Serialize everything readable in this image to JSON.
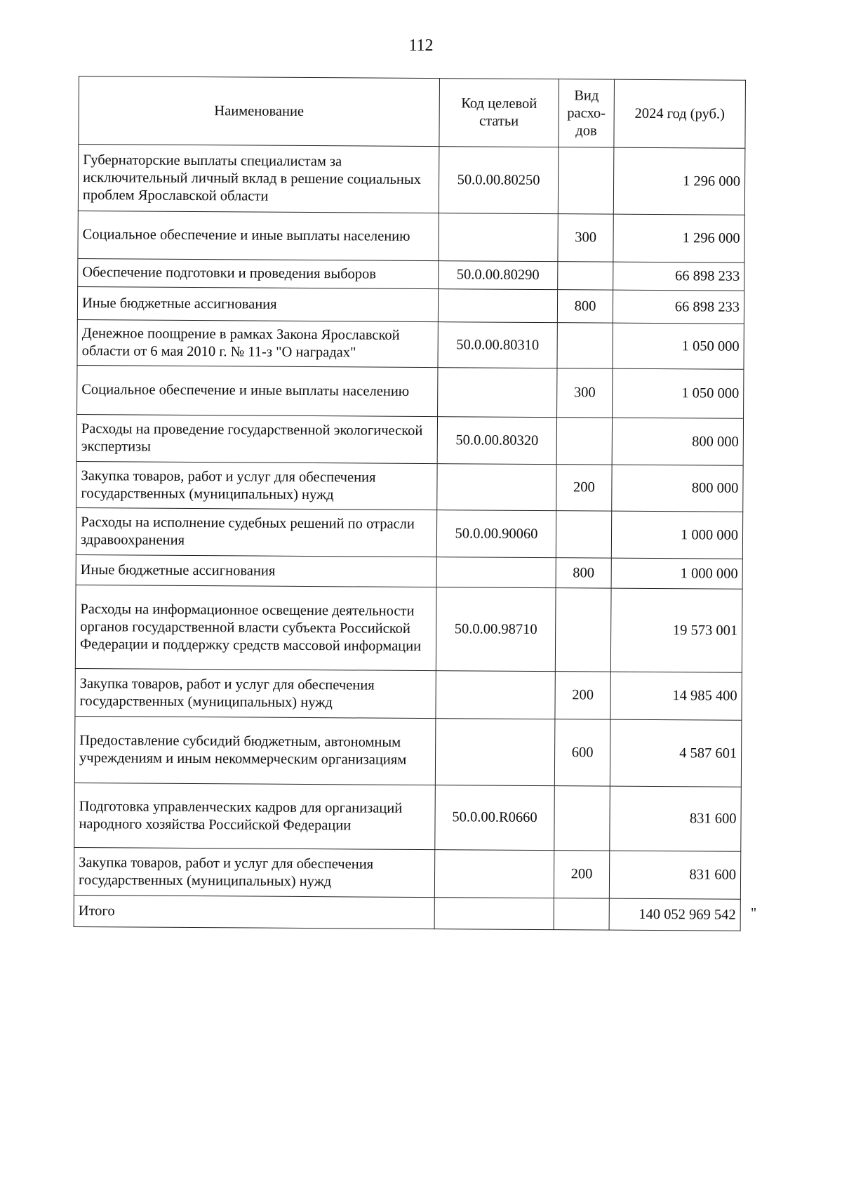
{
  "page_number": "112",
  "table": {
    "headers": {
      "name": "Наименование",
      "code": "Код целевой статьи",
      "kind": "Вид расхо-дов",
      "amount": "2024 год (руб.)"
    },
    "rows": [
      {
        "name": "Губернаторские выплаты специалистам за исключительный личный вклад в решение социальных проблем Ярославской области",
        "code": "50.0.00.80250",
        "kind": "",
        "amount": "1 296 000"
      },
      {
        "name": "Социальное обеспечение и иные выплаты населению",
        "code": "",
        "kind": "300",
        "amount": "1 296 000"
      },
      {
        "name": "Обеспечение подготовки и проведения выборов",
        "code": "50.0.00.80290",
        "kind": "",
        "amount": "66 898 233"
      },
      {
        "name": "Иные бюджетные ассигнования",
        "code": "",
        "kind": "800",
        "amount": "66 898 233"
      },
      {
        "name": "Денежное поощрение в рамках Закона Ярославской области от 6 мая 2010 г. № 11-з \"О наградах\"",
        "code": "50.0.00.80310",
        "kind": "",
        "amount": "1 050 000"
      },
      {
        "name": "Социальное обеспечение и иные выплаты населению",
        "code": "",
        "kind": "300",
        "amount": "1 050 000"
      },
      {
        "name": "Расходы на проведение государственной экологической экспертизы",
        "code": "50.0.00.80320",
        "kind": "",
        "amount": "800 000"
      },
      {
        "name": "Закупка товаров, работ и услуг для обеспечения государственных (муниципальных) нужд",
        "code": "",
        "kind": "200",
        "amount": "800 000"
      },
      {
        "name": "Расходы на исполнение судебных решений по отрасли здравоохранения",
        "code": "50.0.00.90060",
        "kind": "",
        "amount": "1 000 000"
      },
      {
        "name": "Иные бюджетные ассигнования",
        "code": "",
        "kind": "800",
        "amount": "1 000 000"
      },
      {
        "name": "Расходы на информационное освещение деятельности органов государственной власти субъекта Российской Федерации и поддержку средств массовой информации",
        "code": "50.0.00.98710",
        "kind": "",
        "amount": "19 573 001"
      },
      {
        "name": "Закупка товаров, работ и услуг для обеспечения государственных (муниципальных) нужд",
        "code": "",
        "kind": "200",
        "amount": "14 985 400"
      },
      {
        "name": "Предоставление субсидий бюджетным, автономным учреждениям и иным некоммерческим организациям",
        "code": "",
        "kind": "600",
        "amount": "4 587 601"
      },
      {
        "name": "Подготовка управленческих кадров для организаций народного хозяйства Российской Федерации",
        "code": "50.0.00.R0660",
        "kind": "",
        "amount": "831 600"
      },
      {
        "name": "Закупка товаров, работ и услуг для обеспечения государственных (муниципальных) нужд",
        "code": "",
        "kind": "200",
        "amount": "831 600"
      }
    ],
    "total": {
      "name": "Итого",
      "code": "",
      "kind": "",
      "amount": "140 052 969 542"
    }
  },
  "closing_quote": "\""
}
